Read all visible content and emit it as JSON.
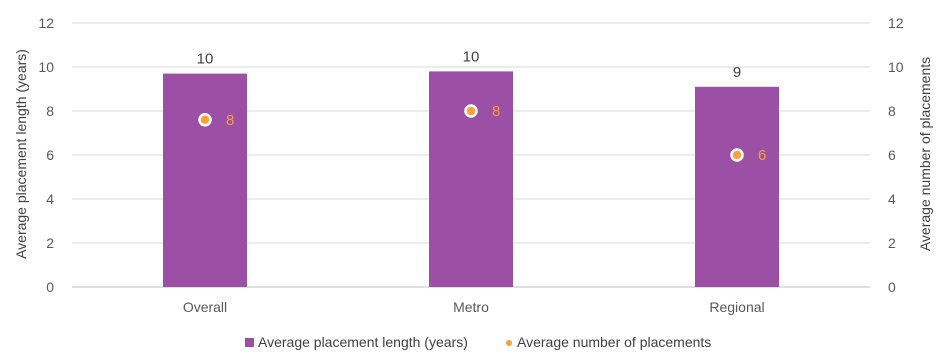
{
  "chart_data": {
    "type": "bar",
    "categories": [
      "Overall",
      "Metro",
      "Regional"
    ],
    "series": [
      {
        "name": "Average placement length (years)",
        "kind": "bar",
        "axis": "left",
        "color": "#9b4fa5",
        "values": [
          9.7,
          9.8,
          9.1
        ],
        "labels": [
          "10",
          "10",
          "9"
        ]
      },
      {
        "name": "Average number of placements",
        "kind": "scatter",
        "axis": "right",
        "color": "#f5a33a",
        "values": [
          7.6,
          8.0,
          6.0
        ],
        "labels": [
          "8",
          "8",
          "6"
        ]
      }
    ],
    "ylabel": "Average placement length (years)",
    "y2label": "Average number of placements",
    "ylim": [
      0,
      12
    ],
    "y2lim": [
      0,
      12
    ],
    "yticks": [
      "0",
      "2",
      "4",
      "6",
      "8",
      "10",
      "12"
    ],
    "y2ticks": [
      "0",
      "2",
      "4",
      "6",
      "8",
      "10",
      "12"
    ],
    "grid": true,
    "legend_position": "bottom"
  }
}
